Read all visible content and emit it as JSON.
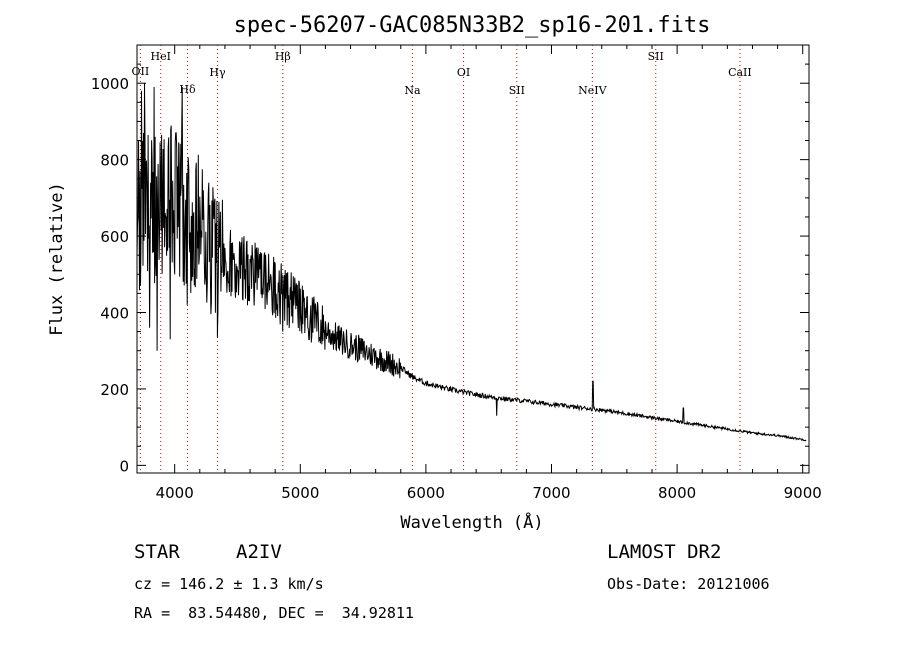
{
  "chart_data": {
    "type": "line",
    "title": "spec-56207-GAC085N33B2_sp16-201.fits",
    "xlabel": "Wavelength (Å)",
    "ylabel": "Flux (relative)",
    "xlim": [
      3700,
      9050
    ],
    "ylim": [
      -20,
      1100
    ],
    "x_ticks": [
      4000,
      5000,
      6000,
      7000,
      8000,
      9000
    ],
    "y_ticks": [
      0,
      200,
      400,
      600,
      800,
      1000
    ],
    "grid": false,
    "line_color": "#000000",
    "marker_color": "#cc0000",
    "lines": [
      {
        "label": "OII",
        "wavelength": 3727
      },
      {
        "label": "HeI",
        "wavelength": 3889
      },
      {
        "label": "Hδ",
        "wavelength": 4102
      },
      {
        "label": "Hγ",
        "wavelength": 4341
      },
      {
        "label": "Hβ",
        "wavelength": 4861
      },
      {
        "label": "Na",
        "wavelength": 5893
      },
      {
        "label": "OI",
        "wavelength": 6300
      },
      {
        "label": "SII",
        "wavelength": 6724
      },
      {
        "label": "NeIV",
        "wavelength": 7325
      },
      {
        "label": "SII",
        "wavelength": 7830
      },
      {
        "label": "CaII",
        "wavelength": 8500
      }
    ],
    "continuum": [
      [
        3700,
        650
      ],
      [
        3800,
        680
      ],
      [
        3900,
        690
      ],
      [
        4000,
        680
      ],
      [
        4100,
        660
      ],
      [
        4200,
        610
      ],
      [
        4300,
        575
      ],
      [
        4400,
        550
      ],
      [
        4500,
        520
      ],
      [
        4600,
        505
      ],
      [
        4700,
        490
      ],
      [
        4800,
        460
      ],
      [
        4900,
        435
      ],
      [
        5000,
        410
      ],
      [
        5100,
        380
      ],
      [
        5200,
        355
      ],
      [
        5300,
        330
      ],
      [
        5400,
        315
      ],
      [
        5500,
        300
      ],
      [
        5600,
        285
      ],
      [
        5700,
        270
      ],
      [
        5800,
        255
      ],
      [
        5900,
        230
      ],
      [
        6000,
        215
      ],
      [
        6200,
        198
      ],
      [
        6400,
        185
      ],
      [
        6600,
        175
      ],
      [
        6800,
        168
      ],
      [
        7000,
        160
      ],
      [
        7200,
        152
      ],
      [
        7400,
        145
      ],
      [
        7600,
        135
      ],
      [
        7800,
        125
      ],
      [
        8000,
        115
      ],
      [
        8200,
        105
      ],
      [
        8400,
        95
      ],
      [
        8600,
        85
      ],
      [
        8800,
        78
      ],
      [
        9050,
        65
      ]
    ],
    "features": [
      {
        "wavelength": 3735,
        "flux": 980
      },
      {
        "wavelength": 3760,
        "flux": 1000
      },
      {
        "wavelength": 3800,
        "flux": 360
      },
      {
        "wavelength": 3835,
        "flux": 990
      },
      {
        "wavelength": 3860,
        "flux": 300
      },
      {
        "wavelength": 3930,
        "flux": 650
      },
      {
        "wavelength": 3965,
        "flux": 330
      },
      {
        "wavelength": 4010,
        "flux": 870
      },
      {
        "wavelength": 4060,
        "flux": 990
      },
      {
        "wavelength": 4100,
        "flux": 420
      },
      {
        "wavelength": 4340,
        "flux": 335
      },
      {
        "wavelength": 4860,
        "flux": 350
      },
      {
        "wavelength": 6563,
        "flux": 130
      },
      {
        "wavelength": 7330,
        "flux": 220
      },
      {
        "wavelength": 8050,
        "flux": 150
      }
    ]
  },
  "info": {
    "object_class": "STAR",
    "subclass": "A2IV",
    "survey": "LAMOST DR2",
    "redshift": "cz = 146.2 ± 1.3 km/s",
    "obs_date": "Obs-Date: 20121006",
    "coords": "RA =  83.54480, DEC =  34.92811"
  }
}
